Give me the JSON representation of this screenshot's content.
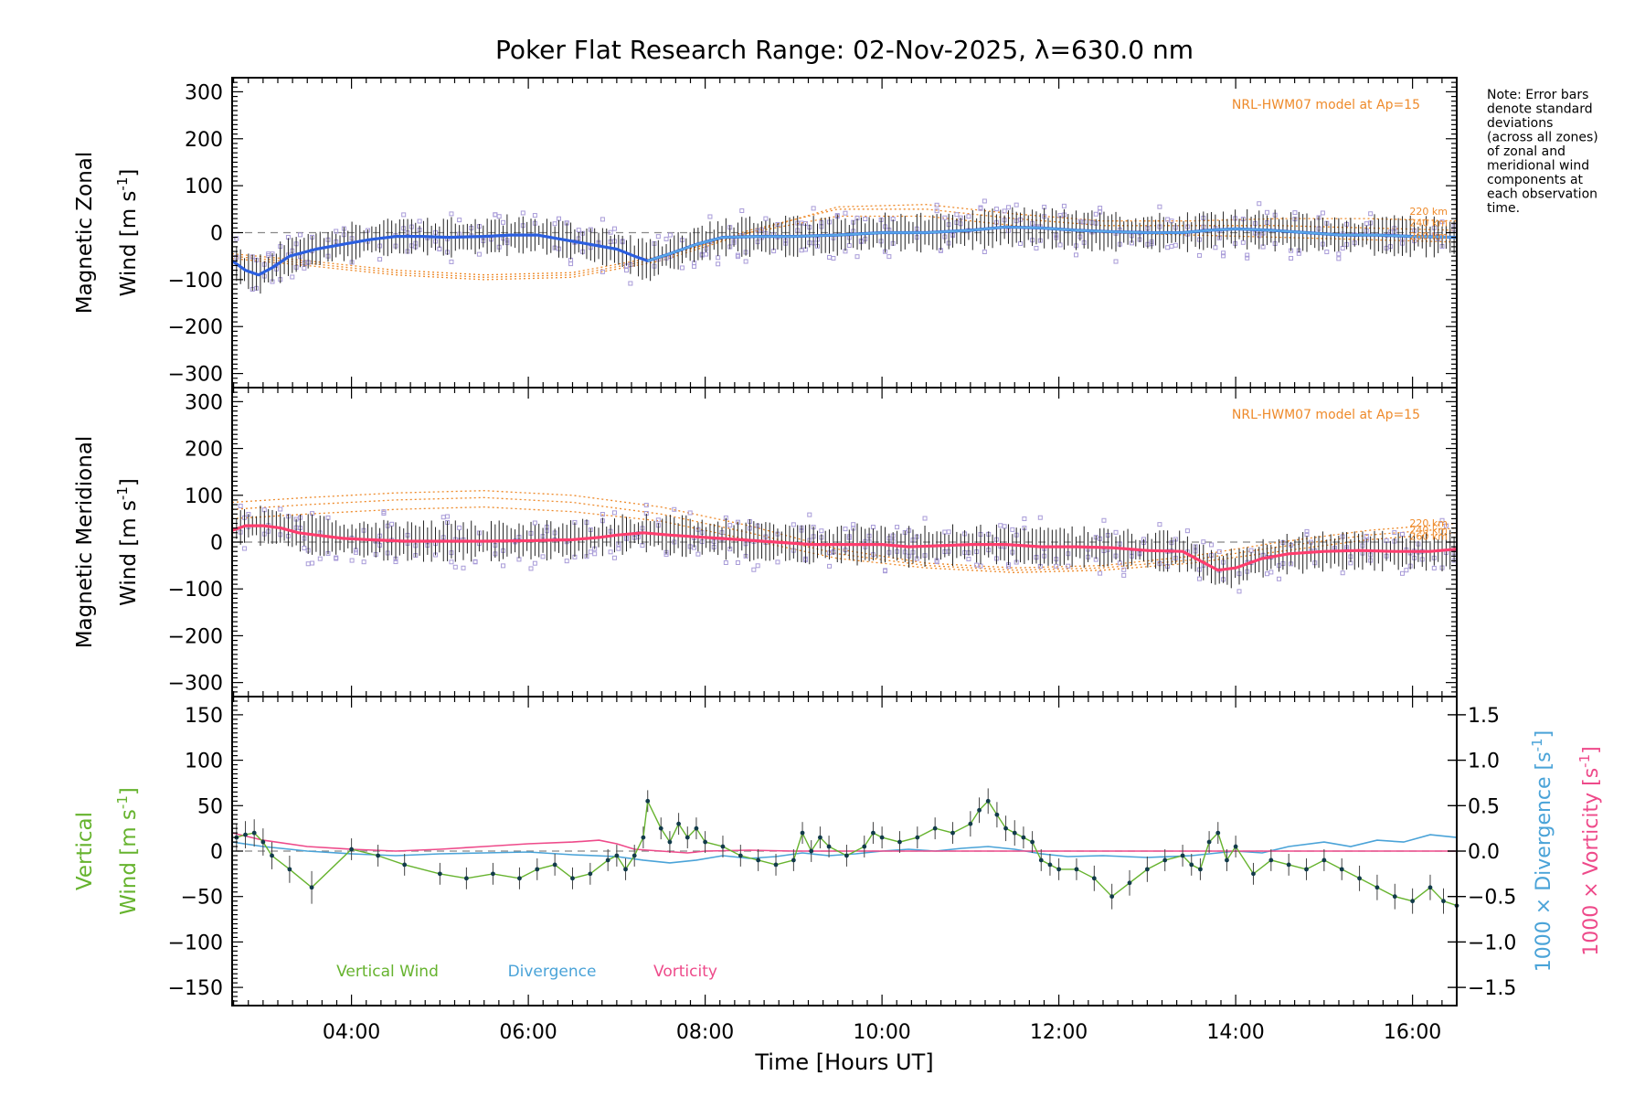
{
  "chart_data": {
    "title": "Poker Flat Research Range: 02-Nov-2025, λ=630.0 nm",
    "xlabel": "Time [Hours UT]",
    "xlim": [
      2.65,
      16.5
    ],
    "xticks": [
      4,
      6,
      8,
      10,
      12,
      14,
      16
    ],
    "xtick_labels": [
      "04:00",
      "06:00",
      "08:00",
      "10:00",
      "12:00",
      "14:00",
      "16:00"
    ],
    "note_lines": [
      "Note: Error bars",
      "denote standard",
      "deviations",
      "(across all zones)",
      "of zonal and",
      "meridional wind",
      "components at",
      "each observation",
      "time."
    ],
    "legend": [
      "Vertical Wind",
      "Divergence",
      "Vorticity"
    ],
    "colors": {
      "zonal": "#2b5fe0",
      "zonal_light": "#5aa8e6",
      "meridional": "#ff3d6e",
      "model": "#ee8a2a",
      "scatter": "#a89bd8",
      "vertical": "#66b32e",
      "divergence": "#4aa3d8",
      "vorticity": "#ee4a8a",
      "errbar": "#333333"
    },
    "panels": [
      {
        "type": "line",
        "name": "zonal",
        "ylabel_line1": "Magnetic Zonal",
        "ylabel_line2": "Wind [m s",
        "ylabel_sup": "-1",
        "ylabel_close": "]",
        "ylim": [
          -330,
          330
        ],
        "yticks": [
          -300,
          -200,
          -100,
          0,
          100,
          200,
          300
        ],
        "ytick_labels": [
          "−300",
          "−200",
          "−100",
          "0",
          "100",
          "200",
          "300"
        ],
        "model_label": "NRL-HWM07 model at Ap=15",
        "altitude_labels": [
          "220 km",
          "240 km",
          "260 km"
        ],
        "mean_series": {
          "name": "Zonal wind (mean)",
          "x": [
            2.65,
            2.8,
            2.95,
            3.1,
            3.3,
            3.6,
            3.9,
            4.2,
            4.5,
            4.8,
            5.1,
            5.5,
            5.8,
            6.1,
            6.4,
            6.7,
            7.0,
            7.2,
            7.35,
            7.6,
            7.9,
            8.2,
            8.6,
            9.0,
            9.5,
            10.0,
            10.5,
            11.0,
            11.4,
            11.8,
            12.2,
            12.6,
            13.0,
            13.4,
            13.7,
            14.0,
            14.4,
            14.8,
            15.2,
            15.6,
            16.0,
            16.5
          ],
          "y": [
            -60,
            -80,
            -90,
            -75,
            -50,
            -35,
            -25,
            -15,
            -8,
            -8,
            -10,
            -8,
            -5,
            -5,
            -15,
            -25,
            -35,
            -50,
            -60,
            -45,
            -25,
            -10,
            -8,
            -8,
            -5,
            0,
            0,
            5,
            12,
            10,
            5,
            2,
            0,
            0,
            5,
            8,
            5,
            0,
            -5,
            -5,
            -8,
            -10
          ]
        },
        "model_series": [
          {
            "name": "220 km",
            "x": [
              2.65,
              3.5,
              4.5,
              5.5,
              6.5,
              7.5,
              8.5,
              9.5,
              10.5,
              11.5,
              12.5,
              13.5,
              14.5,
              15.5,
              16.5
            ],
            "y": [
              -55,
              -70,
              -90,
              -100,
              -95,
              -60,
              0,
              55,
              60,
              40,
              25,
              25,
              30,
              30,
              25
            ]
          },
          {
            "name": "240 km",
            "x": [
              2.65,
              3.5,
              4.5,
              5.5,
              6.5,
              7.5,
              8.5,
              9.5,
              10.5,
              11.5,
              12.5,
              13.5,
              14.5,
              15.5,
              16.5
            ],
            "y": [
              -50,
              -65,
              -85,
              -95,
              -90,
              -55,
              5,
              50,
              50,
              30,
              15,
              15,
              15,
              10,
              5
            ]
          },
          {
            "name": "260 km",
            "x": [
              2.65,
              3.5,
              4.5,
              5.5,
              6.5,
              7.5,
              8.5,
              9.5,
              10.5,
              11.5,
              12.5,
              13.5,
              14.5,
              15.5,
              16.5
            ],
            "y": [
              -45,
              -60,
              -80,
              -90,
              -85,
              -50,
              0,
              35,
              35,
              15,
              0,
              -5,
              -10,
              -15,
              -20
            ]
          }
        ]
      },
      {
        "type": "line",
        "name": "meridional",
        "ylabel_line1": "Magnetic Meridional",
        "ylabel_line2": "Wind [m s",
        "ylabel_sup": "-1",
        "ylabel_close": "]",
        "ylim": [
          -330,
          330
        ],
        "yticks": [
          -300,
          -200,
          -100,
          0,
          100,
          200,
          300
        ],
        "ytick_labels": [
          "−300",
          "−200",
          "−100",
          "0",
          "100",
          "200",
          "300"
        ],
        "model_label": "NRL-HWM07 model at Ap=15",
        "altitude_labels": [
          "220 km",
          "240 km",
          "260 km"
        ],
        "mean_series": {
          "name": "Meridional wind (mean)",
          "x": [
            2.65,
            2.8,
            3.0,
            3.2,
            3.4,
            3.6,
            3.9,
            4.2,
            4.6,
            5.0,
            5.5,
            6.0,
            6.5,
            6.8,
            7.0,
            7.3,
            7.6,
            8.0,
            8.4,
            8.8,
            9.2,
            9.6,
            10.0,
            10.3,
            10.6,
            11.0,
            11.4,
            11.8,
            12.2,
            12.6,
            13.0,
            13.4,
            13.6,
            13.8,
            14.0,
            14.3,
            14.6,
            15.0,
            15.4,
            15.8,
            16.2,
            16.5
          ],
          "y": [
            25,
            35,
            35,
            30,
            20,
            15,
            8,
            5,
            2,
            2,
            2,
            3,
            5,
            10,
            15,
            20,
            15,
            10,
            5,
            0,
            -5,
            -5,
            -5,
            -10,
            -8,
            -5,
            -5,
            -10,
            -10,
            -12,
            -18,
            -20,
            -40,
            -60,
            -55,
            -35,
            -25,
            -20,
            -18,
            -20,
            -20,
            -15
          ]
        },
        "model_series": [
          {
            "name": "220 km",
            "x": [
              2.65,
              3.5,
              4.5,
              5.5,
              6.5,
              7.5,
              8.5,
              9.5,
              10.5,
              11.5,
              12.5,
              13.5,
              14.5,
              15.5,
              16.5
            ],
            "y": [
              85,
              95,
              105,
              110,
              100,
              75,
              35,
              -15,
              -45,
              -55,
              -50,
              -30,
              0,
              25,
              40
            ]
          },
          {
            "name": "240 km",
            "x": [
              2.65,
              3.5,
              4.5,
              5.5,
              6.5,
              7.5,
              8.5,
              9.5,
              10.5,
              11.5,
              12.5,
              13.5,
              14.5,
              15.5,
              16.5
            ],
            "y": [
              70,
              80,
              90,
              95,
              85,
              60,
              20,
              -25,
              -50,
              -60,
              -55,
              -38,
              -10,
              15,
              30
            ]
          },
          {
            "name": "260 km",
            "x": [
              2.65,
              3.5,
              4.5,
              5.5,
              6.5,
              7.5,
              8.5,
              9.5,
              10.5,
              11.5,
              12.5,
              13.5,
              14.5,
              15.5,
              16.5
            ],
            "y": [
              50,
              60,
              70,
              75,
              65,
              45,
              5,
              -35,
              -55,
              -65,
              -60,
              -45,
              -20,
              5,
              20
            ]
          }
        ]
      },
      {
        "type": "line",
        "name": "vertical",
        "ylabel_line1": "Vertical",
        "ylabel_line2": "Wind [m s",
        "ylabel_sup": "-1",
        "ylabel_close": "]",
        "ylim": [
          -170,
          170
        ],
        "yticks": [
          -150,
          -100,
          -50,
          0,
          50,
          100,
          150
        ],
        "ytick_labels": [
          "−150",
          "−100",
          "−50",
          "0",
          "50",
          "100",
          "150"
        ],
        "y2lim": [
          -1.7,
          1.7
        ],
        "y2ticks": [
          -1.5,
          -1.0,
          -0.5,
          0.0,
          0.5,
          1.0,
          1.5
        ],
        "y2tick_labels": [
          "−1.5",
          "−1.0",
          "−0.5",
          "0.0",
          "0.5",
          "1.0",
          "1.5"
        ],
        "y2label_div": "1000 × Divergence [s",
        "y2label_vort": "1000 × Vorticity [s",
        "y2label_sup": "-1",
        "y2label_close": "]",
        "vertical_series": {
          "name": "Vertical Wind",
          "x": [
            2.7,
            2.8,
            2.9,
            3.0,
            3.1,
            3.3,
            3.55,
            4.0,
            4.3,
            4.6,
            5.0,
            5.3,
            5.6,
            5.9,
            6.1,
            6.3,
            6.5,
            6.7,
            6.9,
            7.0,
            7.1,
            7.2,
            7.3,
            7.35,
            7.5,
            7.6,
            7.7,
            7.8,
            7.9,
            8.0,
            8.2,
            8.4,
            8.6,
            8.8,
            9.0,
            9.1,
            9.2,
            9.3,
            9.4,
            9.6,
            9.8,
            9.9,
            10.0,
            10.2,
            10.4,
            10.6,
            10.8,
            11.0,
            11.1,
            11.2,
            11.3,
            11.4,
            11.5,
            11.6,
            11.7,
            11.8,
            11.9,
            12.0,
            12.2,
            12.4,
            12.6,
            12.8,
            13.0,
            13.2,
            13.4,
            13.5,
            13.6,
            13.7,
            13.8,
            13.9,
            14.0,
            14.2,
            14.4,
            14.6,
            14.8,
            15.0,
            15.2,
            15.4,
            15.6,
            15.8,
            16.0,
            16.2,
            16.35,
            16.5
          ],
          "y": [
            15,
            18,
            20,
            10,
            -5,
            -20,
            -40,
            2,
            -5,
            -15,
            -25,
            -30,
            -25,
            -30,
            -20,
            -15,
            -30,
            -25,
            -10,
            -5,
            -20,
            -5,
            15,
            55,
            25,
            10,
            30,
            15,
            25,
            10,
            5,
            -5,
            -10,
            -15,
            -10,
            20,
            0,
            15,
            5,
            -5,
            5,
            20,
            15,
            10,
            15,
            25,
            20,
            30,
            45,
            55,
            40,
            25,
            20,
            15,
            10,
            -10,
            -15,
            -20,
            -20,
            -30,
            -50,
            -35,
            -20,
            -10,
            -5,
            -15,
            -20,
            10,
            20,
            -10,
            5,
            -25,
            -10,
            -15,
            -20,
            -10,
            -20,
            -30,
            -40,
            -50,
            -55,
            -40,
            -55,
            -60
          ]
        },
        "vertical_err": [
          15,
          15,
          15,
          15,
          15,
          15,
          18,
          12,
          12,
          12,
          12,
          12,
          12,
          12,
          12,
          12,
          12,
          12,
          12,
          12,
          12,
          12,
          12,
          12,
          12,
          12,
          12,
          12,
          12,
          12,
          12,
          12,
          12,
          12,
          12,
          12,
          12,
          12,
          12,
          12,
          12,
          12,
          12,
          12,
          12,
          12,
          12,
          14,
          14,
          14,
          14,
          14,
          14,
          12,
          12,
          12,
          12,
          12,
          12,
          14,
          14,
          14,
          14,
          12,
          12,
          12,
          12,
          12,
          12,
          12,
          12,
          12,
          12,
          12,
          12,
          12,
          12,
          14,
          14,
          14,
          14,
          14,
          14,
          14
        ],
        "divergence_series": {
          "name": "Divergence",
          "x": [
            2.65,
            3.0,
            3.5,
            4.0,
            4.5,
            5.0,
            5.5,
            6.0,
            6.5,
            7.0,
            7.3,
            7.6,
            7.9,
            8.2,
            8.5,
            8.8,
            9.1,
            9.4,
            9.7,
            10.0,
            10.3,
            10.6,
            10.9,
            11.2,
            11.5,
            11.8,
            12.1,
            12.5,
            13.0,
            13.5,
            14.0,
            14.3,
            14.6,
            15.0,
            15.3,
            15.6,
            15.9,
            16.2,
            16.5
          ],
          "y": [
            0.1,
            0.05,
            0.0,
            -0.03,
            -0.05,
            -0.03,
            -0.02,
            -0.01,
            -0.04,
            -0.06,
            -0.1,
            -0.13,
            -0.1,
            -0.05,
            -0.08,
            -0.06,
            -0.02,
            -0.05,
            -0.03,
            0.0,
            0.02,
            0.0,
            0.03,
            0.05,
            0.02,
            -0.03,
            -0.06,
            -0.05,
            -0.07,
            -0.05,
            0.0,
            -0.02,
            0.05,
            0.1,
            0.05,
            0.12,
            0.1,
            0.18,
            0.15
          ]
        },
        "vorticity_series": {
          "name": "Vorticity",
          "x": [
            2.65,
            3.0,
            3.5,
            4.0,
            4.5,
            5.0,
            5.5,
            6.0,
            6.5,
            6.8,
            7.0,
            7.2,
            7.5,
            7.8,
            8.0,
            8.5,
            9.0,
            9.5,
            10.0,
            10.5,
            11.0,
            11.5,
            12.0,
            12.5,
            13.0,
            13.5,
            14.0,
            14.5,
            15.0,
            15.5,
            16.0,
            16.5
          ],
          "y": [
            0.2,
            0.12,
            0.05,
            0.02,
            0.0,
            0.02,
            0.05,
            0.08,
            0.1,
            0.12,
            0.08,
            0.02,
            0.0,
            -0.02,
            0.0,
            0.01,
            0.0,
            0.0,
            0.0,
            0.0,
            0.0,
            0.0,
            0.0,
            0.0,
            0.0,
            0.0,
            0.0,
            0.0,
            0.0,
            0.0,
            0.0,
            0.0
          ]
        }
      }
    ]
  }
}
